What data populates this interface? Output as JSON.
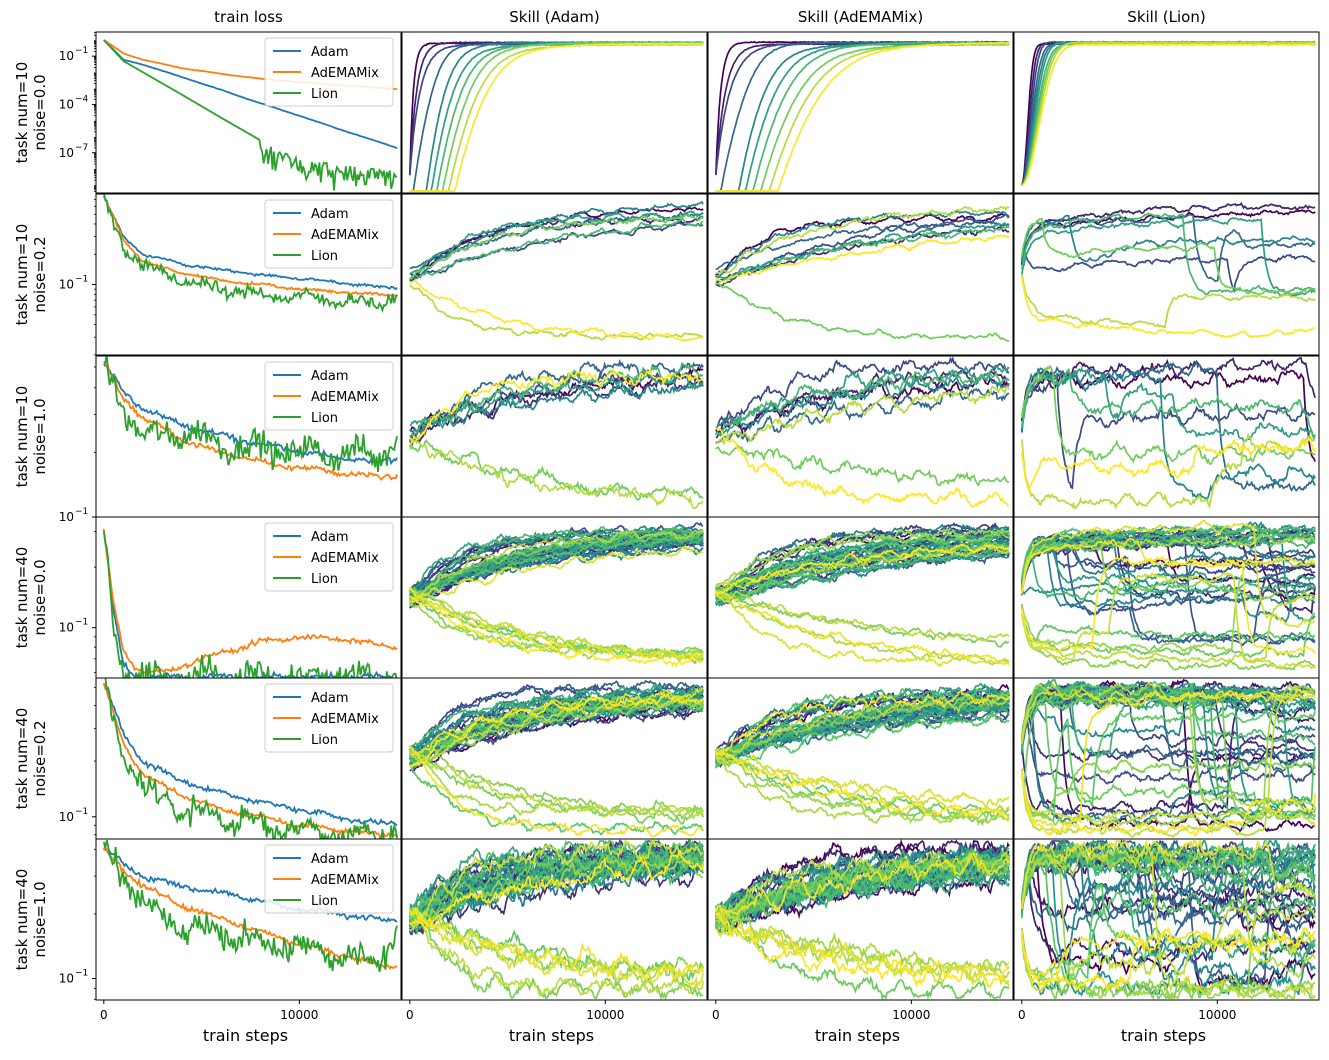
{
  "chart_data": {
    "type": "line",
    "column_titles": [
      "train loss",
      "Skill (Adam)",
      "Skill (AdEMAMix)",
      "Skill (Lion)"
    ],
    "row_labels": [
      [
        "task num=10",
        "noise=0.0"
      ],
      [
        "task num=10",
        "noise=0.2"
      ],
      [
        "task num=10",
        "noise=1.0"
      ],
      [
        "task num=40",
        "noise=0.0"
      ],
      [
        "task num=40",
        "noise=0.2"
      ],
      [
        "task num=40",
        "noise=1.0"
      ]
    ],
    "xlabel": "train steps",
    "xticks": [
      0,
      10000
    ],
    "xlim": [
      -400,
      15200
    ],
    "legend": [
      "Adam",
      "AdEMAMix",
      "Lion"
    ],
    "legend_position": "top-right",
    "colors": {
      "Adam": "#1f77b4",
      "AdEMAMix": "#ff7f0e",
      "Lion": "#2ca02c"
    },
    "skill_colormap": [
      "#440154",
      "#3b528b",
      "#21918c",
      "#5ec962",
      "#fde725"
    ],
    "rows": [
      {
        "ylim_log": [
          -9.5,
          0.5
        ],
        "yticks": [
          {
            "v": 0.1,
            "label": "10",
            "exp": "−1"
          },
          {
            "v": 0.0001,
            "label": "10",
            "exp": "−4"
          },
          {
            "v": 1e-07,
            "label": "10",
            "exp": "−7"
          }
        ],
        "loss": {
          "x": [
            0,
            1000,
            2000,
            4000,
            6000,
            8000,
            10000,
            12000,
            14000,
            15000
          ],
          "Adam": [
            1.0,
            0.06,
            0.03,
            0.005,
            0.0008,
            0.00012,
            2e-05,
            3e-06,
            5e-07,
            2e-07
          ],
          "AdEMAMix": [
            1.0,
            0.15,
            0.06,
            0.018,
            0.008,
            0.004,
            0.0025,
            0.0016,
            0.0011,
            0.0009
          ],
          "Lion": [
            1.0,
            0.05,
            0.01,
            0.0004,
            1.5e-05,
            6e-07,
            4e-08,
            2e-08,
            1e-08,
            1e-08
          ]
        },
        "skill_style": "converge_low",
        "n_tasks": 10,
        "lion_chaos": 0.0,
        "noise": 0.0
      },
      {
        "ylim_log": [
          -1.7,
          -0.1
        ],
        "yticks": [
          {
            "v": 0.1,
            "label": "10",
            "exp": "−1"
          }
        ],
        "loss": {
          "x": [
            0,
            1000,
            2000,
            4000,
            6000,
            8000,
            10000,
            12000,
            14000,
            15000
          ],
          "Adam": [
            0.75,
            0.3,
            0.2,
            0.16,
            0.14,
            0.125,
            0.115,
            0.105,
            0.095,
            0.093
          ],
          "AdEMAMix": [
            0.75,
            0.28,
            0.17,
            0.13,
            0.11,
            0.1,
            0.09,
            0.085,
            0.08,
            0.078
          ],
          "Lion": [
            0.75,
            0.25,
            0.15,
            0.11,
            0.09,
            0.08,
            0.075,
            0.07,
            0.065,
            0.075
          ]
        },
        "skill_style": "slow_mixed",
        "n_tasks": 10,
        "lion_chaos": 0.7,
        "noise": 0.2
      },
      {
        "ylim_log": [
          -1.0,
          -0.25
        ],
        "yticks": [
          {
            "v": 0.1,
            "label": "10",
            "exp": "−1"
          }
        ],
        "loss": {
          "x": [
            0,
            1000,
            2000,
            4000,
            6000,
            8000,
            10000,
            12000,
            14000,
            15000
          ],
          "Adam": [
            0.52,
            0.38,
            0.32,
            0.27,
            0.24,
            0.22,
            0.2,
            0.19,
            0.18,
            0.19
          ],
          "AdEMAMix": [
            0.52,
            0.36,
            0.29,
            0.23,
            0.2,
            0.18,
            0.17,
            0.16,
            0.155,
            0.155
          ],
          "Lion": [
            0.52,
            0.33,
            0.23,
            0.25,
            0.22,
            0.21,
            0.2,
            0.2,
            0.19,
            0.24
          ]
        },
        "skill_style": "noisy_spread",
        "n_tasks": 10,
        "lion_chaos": 0.9,
        "noise": 1.0
      },
      {
        "ylim_log": [
          -1.25,
          -0.45
        ],
        "yticks": [
          {
            "v": 0.1,
            "label": "10",
            "exp": "−1"
          }
        ],
        "loss": {
          "x": [
            0,
            500,
            1000,
            1500,
            2000,
            3000,
            5000,
            8000,
            10000,
            12000,
            15000
          ],
          "Adam": [
            0.3,
            0.12,
            0.065,
            0.058,
            0.057,
            0.057,
            0.057,
            0.057,
            0.057,
            0.057,
            0.057
          ],
          "AdEMAMix": [
            0.3,
            0.13,
            0.078,
            0.065,
            0.06,
            0.06,
            0.07,
            0.085,
            0.09,
            0.088,
            0.08
          ],
          "Lion": [
            0.3,
            0.1,
            0.06,
            0.057,
            0.057,
            0.057,
            0.057,
            0.057,
            0.057,
            0.057,
            0.057
          ]
        },
        "skill_style": "bimodal",
        "n_tasks": 40,
        "lion_chaos": 0.8,
        "noise": 0.0
      },
      {
        "ylim_log": [
          -1.12,
          -0.25
        ],
        "yticks": [
          {
            "v": 0.1,
            "label": "10",
            "exp": "−1"
          }
        ],
        "loss": {
          "x": [
            0,
            1000,
            2000,
            4000,
            6000,
            8000,
            10000,
            12000,
            14000,
            15000
          ],
          "Adam": [
            0.52,
            0.28,
            0.2,
            0.155,
            0.135,
            0.12,
            0.11,
            0.1,
            0.092,
            0.093
          ],
          "AdEMAMix": [
            0.52,
            0.25,
            0.17,
            0.13,
            0.11,
            0.1,
            0.09,
            0.085,
            0.08,
            0.08
          ],
          "Lion": [
            0.52,
            0.22,
            0.14,
            0.11,
            0.1,
            0.09,
            0.085,
            0.08,
            0.078,
            0.085
          ]
        },
        "skill_style": "noisy_spread",
        "n_tasks": 40,
        "lion_chaos": 1.0,
        "noise": 0.2
      },
      {
        "ylim_log": [
          -1.1,
          -0.35
        ],
        "yticks": [
          {
            "v": 0.1,
            "label": "10",
            "exp": "−1"
          }
        ],
        "loss": {
          "x": [
            0,
            1000,
            2000,
            4000,
            6000,
            8000,
            10000,
            12000,
            14000,
            15000
          ],
          "Adam": [
            0.4,
            0.34,
            0.3,
            0.27,
            0.25,
            0.23,
            0.21,
            0.2,
            0.19,
            0.19
          ],
          "AdEMAMix": [
            0.4,
            0.32,
            0.27,
            0.22,
            0.19,
            0.165,
            0.145,
            0.13,
            0.115,
            0.115
          ],
          "Lion": [
            0.4,
            0.3,
            0.22,
            0.17,
            0.16,
            0.15,
            0.14,
            0.125,
            0.12,
            0.17
          ]
        },
        "skill_style": "noisy_spread",
        "n_tasks": 40,
        "lion_chaos": 1.0,
        "noise": 1.0
      }
    ]
  }
}
